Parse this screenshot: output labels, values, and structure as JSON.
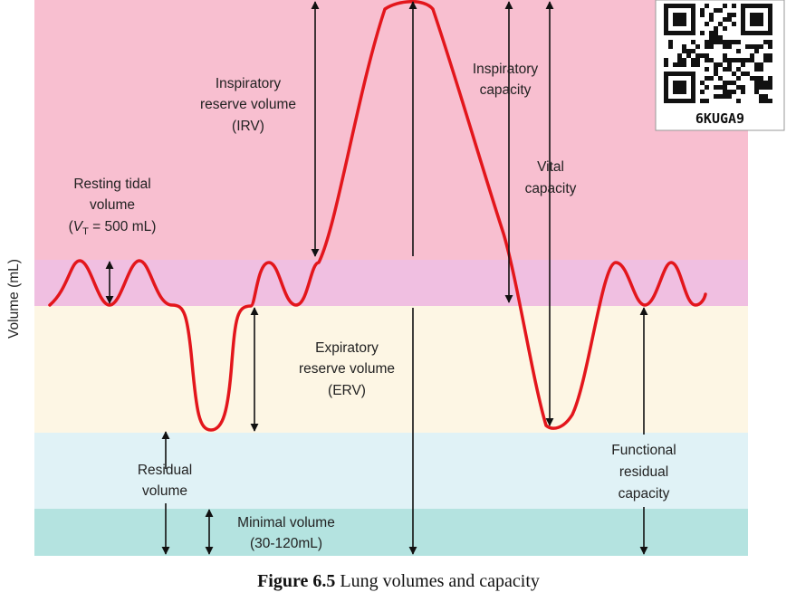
{
  "figure": {
    "caption_number": "Figure 6.5",
    "caption_text": "Lung volumes and capacity",
    "y_axis_label": "Volume (mL)"
  },
  "labels": {
    "irv": [
      "Inspiratory",
      "reserve volume",
      "(IRV)"
    ],
    "tidal": [
      "Resting tidal",
      "volume"
    ],
    "tidal_formula": {
      "var": "V",
      "sub": "T",
      "rest": " = 500 mL)",
      "open": "("
    },
    "inspiratory_capacity": [
      "Inspiratory",
      "capacity"
    ],
    "vital_capacity": [
      "Vital",
      "capacity"
    ],
    "erv": [
      "Expiratory",
      "reserve volume",
      "(ERV)"
    ],
    "residual_volume": [
      "Residual",
      "volume"
    ],
    "minimal_volume": [
      "Minimal volume",
      "(30-120mL)"
    ],
    "frc": [
      "Functional",
      "residual",
      "capacity"
    ]
  },
  "qr": {
    "code": "6KUGA9"
  },
  "colors": {
    "irv_band": "#f8bfd0",
    "tidal_band": "#f0bfe1",
    "erv_band": "#fdf6e4",
    "residual_band": "#e0f2f6",
    "minimal_band": "#b4e3e0",
    "trace": "#e3161c",
    "arrow": "#111111"
  }
}
